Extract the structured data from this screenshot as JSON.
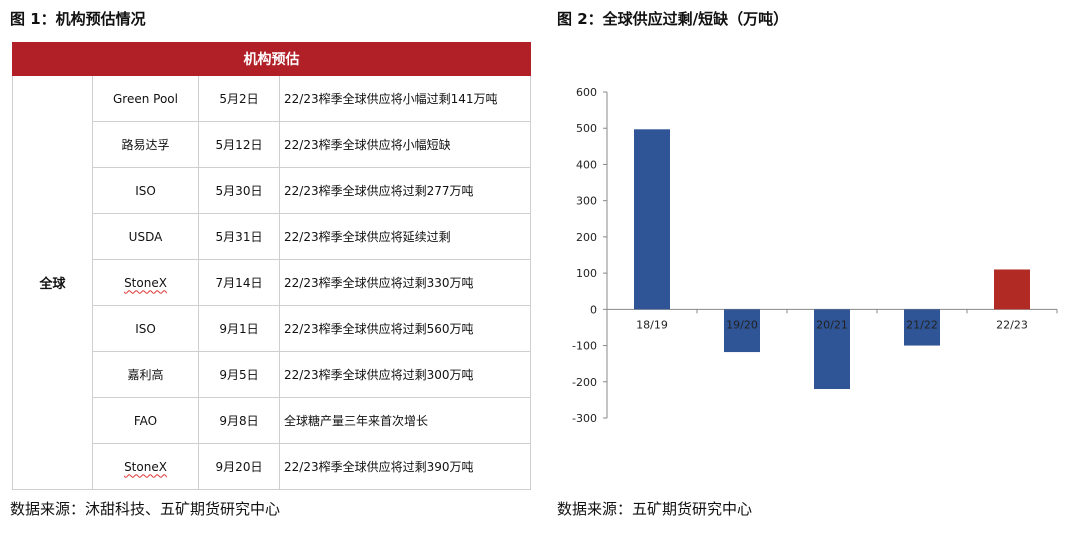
{
  "left": {
    "title": "图 1：机构预估情况",
    "table_header": "机构预估",
    "region": "全球",
    "rows": [
      {
        "org": "Green Pool",
        "date": "5月2日",
        "note": "22/23榨季全球供应将小幅过剩141万吨"
      },
      {
        "org": "路易达孚",
        "date": "5月12日",
        "note": "22/23榨季全球供应将小幅短缺"
      },
      {
        "org": "ISO",
        "date": "5月30日",
        "note": "22/23榨季全球供应将过剩277万吨"
      },
      {
        "org": "USDA",
        "date": "5月31日",
        "note": "22/23榨季全球供应将延续过剩"
      },
      {
        "org": "StoneX",
        "date": "7月14日",
        "note": "22/23榨季全球供应将过剩330万吨"
      },
      {
        "org": "ISO",
        "date": "9月1日",
        "note": "22/23榨季全球供应将过剩560万吨"
      },
      {
        "org": "嘉利高",
        "date": "9月5日",
        "note": "22/23榨季全球供应将过剩300万吨"
      },
      {
        "org": "FAO",
        "date": "9月8日",
        "note": "全球糖产量三年来首次增长"
      },
      {
        "org": "StoneX",
        "date": "9月20日",
        "note": "22/23榨季全球供应将过剩390万吨"
      }
    ],
    "source": "数据来源：沐甜科技、五矿期货研究中心"
  },
  "right": {
    "title": "图 2：全球供应过剩/短缺（万吨）",
    "source": "数据来源：五矿期货研究中心"
  },
  "chart_data": {
    "type": "bar",
    "title": "图 2：全球供应过剩/短缺（万吨）",
    "categories": [
      "18/19",
      "19/20",
      "20/21",
      "21/22",
      "22/23"
    ],
    "values": [
      497,
      -118,
      -220,
      -100,
      110
    ],
    "bar_colors": [
      "#2f5597",
      "#2f5597",
      "#2f5597",
      "#2f5597",
      "#b22a24"
    ],
    "ylim": [
      -300,
      600
    ],
    "yticks": [
      600,
      500,
      400,
      300,
      200,
      100,
      0,
      -100,
      -200,
      -300
    ],
    "xlabel": "",
    "ylabel": "",
    "grid": false
  }
}
